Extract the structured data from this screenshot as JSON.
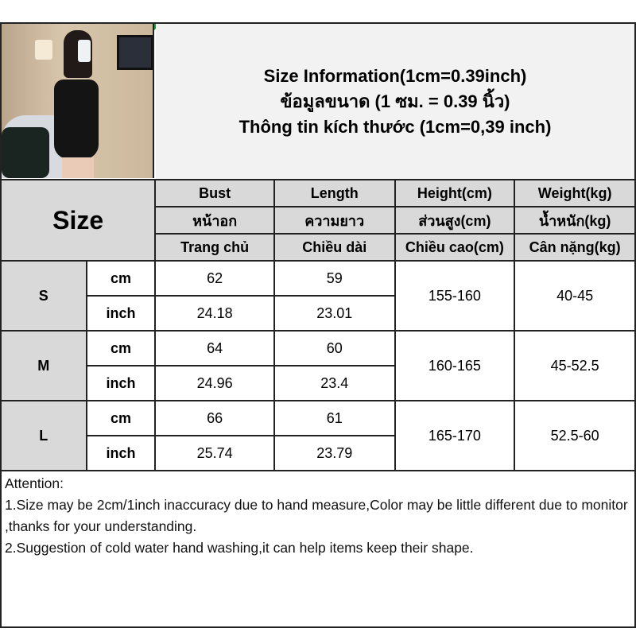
{
  "header": {
    "lines": [
      "Size Information(1cm=0.39inch)",
      "ข้อมูลขนาด (1 ซม. = 0.39 นิ้ว)",
      "Thông tin kích thước (1cm=0,39 inch)"
    ]
  },
  "table": {
    "size_label": "Size",
    "columns": [
      [
        "Bust",
        "หน้าอก",
        "Trang chủ"
      ],
      [
        "Length",
        "ความยาว",
        "Chiều dài"
      ],
      [
        "Height(cm)",
        "ส่วนสูง(cm)",
        "Chiều cao(cm)"
      ],
      [
        "Weight(kg)",
        "น้ำหนัก(kg)",
        "Cân nặng(kg)"
      ]
    ],
    "rows": [
      {
        "size": "S",
        "cm": {
          "unit": "cm",
          "bust": "62",
          "length": "59"
        },
        "inch": {
          "unit": "inch",
          "bust": "24.18",
          "length": "23.01"
        },
        "height": "155-160",
        "weight": "40-45"
      },
      {
        "size": "M",
        "cm": {
          "unit": "cm",
          "bust": "64",
          "length": "60"
        },
        "inch": {
          "unit": "inch",
          "bust": "24.96",
          "length": "23.4"
        },
        "height": "160-165",
        "weight": "45-52.5"
      },
      {
        "size": "L",
        "cm": {
          "unit": "cm",
          "bust": "66",
          "length": "61"
        },
        "inch": {
          "unit": "inch",
          "bust": "25.74",
          "length": "23.79"
        },
        "height": "165-170",
        "weight": "52.5-60"
      }
    ]
  },
  "attention": {
    "title": "Attention:",
    "lines": [
      "1.Size may be 2cm/1inch inaccuracy due to hand measure,Color may be little different due to monitor ,thanks for your understanding.",
      "2.Suggestion of cold water hand washing,it can help items keep their shape."
    ]
  }
}
